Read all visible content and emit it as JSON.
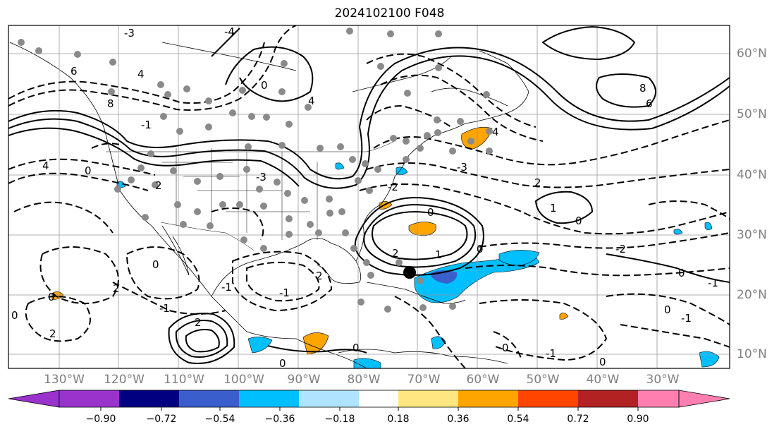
{
  "title": "2024102100 F048",
  "lat_labels": [
    "60°N",
    "50°N",
    "40°N",
    "30°N",
    "20°N",
    "10°N"
  ],
  "lon_labels": [
    "130°W",
    "120°W",
    "110°W",
    "100°W",
    "90°W",
    "80°W",
    "70°W",
    "60°W",
    "50°W",
    "40°W",
    "30°W"
  ],
  "colorbar": {
    "tick_labels": [
      "−0.90",
      "−0.72",
      "−0.54",
      "−0.36",
      "−0.18",
      "0.18",
      "0.36",
      "0.54",
      "0.72",
      "0.90"
    ],
    "colors": [
      "#9933cc",
      "#000080",
      "#3a5fcd",
      "#00bfff",
      "#afe3ff",
      "#ffffff",
      "#ffe680",
      "#ffa500",
      "#ff4500",
      "#b22222",
      "#ff80b0"
    ]
  },
  "contour_labels": [
    "0",
    "-2",
    "-3",
    "-4",
    "4",
    "6",
    "8",
    "-1",
    "1",
    "2",
    "0",
    "-2",
    "-1",
    "2",
    "-2",
    "0",
    "-1",
    "-2",
    "-4",
    "4",
    "-3",
    "1",
    "-2",
    "0",
    "2",
    "-1",
    "-2",
    "0",
    "0",
    "2",
    "-1",
    "-2",
    "-1",
    "0",
    "-1",
    "-2",
    "0",
    "2"
  ],
  "map_features": {
    "projection": "mercator",
    "coastlines": true,
    "borders": true,
    "marker": "storm-center",
    "stations": "surface-observation-dots"
  }
}
